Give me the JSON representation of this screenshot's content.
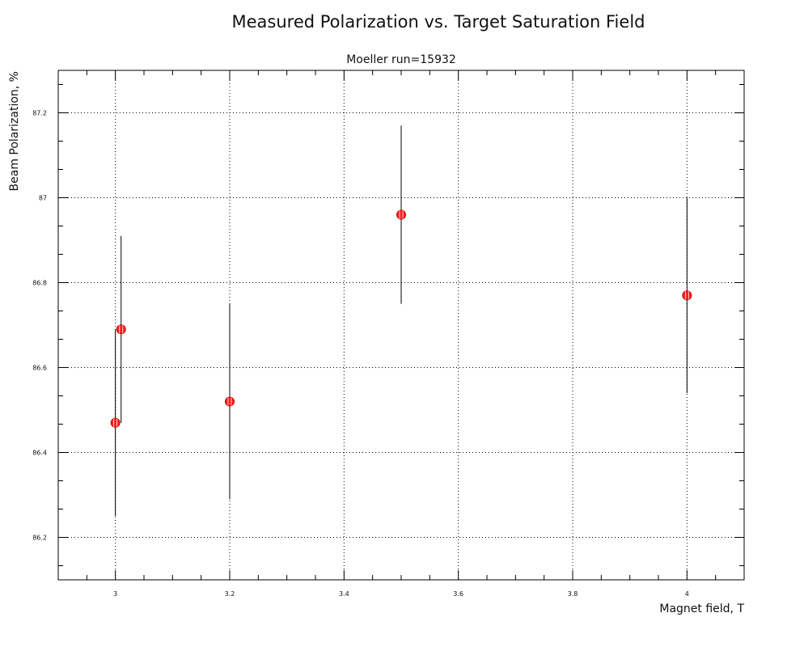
{
  "chart_data": {
    "type": "scatter",
    "title": "Measured Polarization vs. Target Saturation Field",
    "subtitle": "Moeller run=15932",
    "xlabel": "Magnet field, T",
    "ylabel": "Beam Polarization, %",
    "xlim": [
      2.9,
      4.1
    ],
    "ylim": [
      86.1,
      87.3
    ],
    "x_major_ticks": [
      3,
      3.2,
      3.4,
      3.6,
      3.8,
      4
    ],
    "x_tick_labels": [
      "3",
      "3.2",
      "3.4",
      "3.6",
      "3.8",
      "4"
    ],
    "y_major_ticks": [
      86.2,
      86.4,
      86.6,
      86.8,
      87,
      87.2
    ],
    "y_tick_labels": [
      "86.2",
      "86.4",
      "86.6",
      "86.8",
      "87",
      "87.2"
    ],
    "x_minor_step": 0.05,
    "y_minor_step": 0.066667,
    "grid": true,
    "points": [
      {
        "x": 3.0,
        "y": 86.47,
        "err": 0.22
      },
      {
        "x": 3.01,
        "y": 86.69,
        "err": 0.22
      },
      {
        "x": 3.2,
        "y": 86.52,
        "err": 0.23
      },
      {
        "x": 3.5,
        "y": 86.96,
        "err": 0.21
      },
      {
        "x": 4.0,
        "y": 86.77,
        "err": 0.23
      }
    ],
    "colors": {
      "marker_fill": "#ff2020",
      "marker_stroke": "#cc0000",
      "line": "#000000"
    }
  }
}
